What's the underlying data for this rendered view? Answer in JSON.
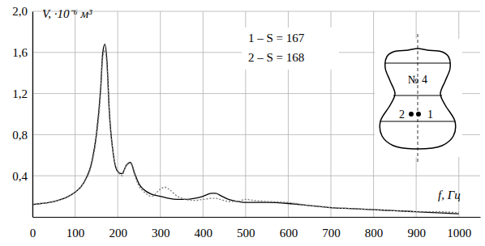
{
  "chart_data": {
    "type": "line",
    "x_label": "f, Гц",
    "y_label": "V, ·10⁻⁶ м³",
    "grid": true,
    "x": [
      0,
      20,
      40,
      60,
      80,
      100,
      120,
      140,
      150,
      160,
      165,
      170,
      175,
      180,
      190,
      200,
      210,
      220,
      230,
      240,
      250,
      260,
      280,
      300,
      310,
      320,
      340,
      360,
      380,
      400,
      420,
      430,
      440,
      460,
      480,
      500,
      520,
      550,
      600,
      650,
      700,
      750,
      800,
      850,
      900,
      950,
      1000
    ],
    "series": [
      {
        "name": "1 – S = 167",
        "color": "#000000",
        "line_style": "solid",
        "values": [
          0.12,
          0.13,
          0.14,
          0.16,
          0.19,
          0.24,
          0.33,
          0.55,
          0.8,
          1.25,
          1.6,
          1.68,
          1.5,
          1.05,
          0.6,
          0.44,
          0.42,
          0.5,
          0.53,
          0.42,
          0.32,
          0.27,
          0.22,
          0.2,
          0.19,
          0.18,
          0.17,
          0.17,
          0.18,
          0.2,
          0.23,
          0.23,
          0.21,
          0.17,
          0.15,
          0.14,
          0.14,
          0.14,
          0.13,
          0.11,
          0.09,
          0.08,
          0.07,
          0.06,
          0.05,
          0.04,
          0.03
        ]
      },
      {
        "name": "2 – S = 168",
        "color": "#808080",
        "line_style": "dotted",
        "values": [
          0.12,
          0.13,
          0.14,
          0.16,
          0.19,
          0.24,
          0.33,
          0.53,
          0.77,
          1.2,
          1.55,
          1.62,
          1.45,
          1.02,
          0.6,
          0.45,
          0.4,
          0.5,
          0.52,
          0.4,
          0.3,
          0.25,
          0.2,
          0.27,
          0.29,
          0.27,
          0.2,
          0.17,
          0.16,
          0.17,
          0.18,
          0.18,
          0.17,
          0.15,
          0.15,
          0.17,
          0.16,
          0.15,
          0.14,
          0.11,
          0.09,
          0.08,
          0.07,
          0.06,
          0.05,
          0.05,
          0.04
        ]
      }
    ],
    "xlim": [
      0,
      1050
    ],
    "xticks": [
      0,
      100,
      200,
      300,
      400,
      500,
      600,
      700,
      800,
      900,
      1000
    ],
    "ylim": [
      0,
      2.0
    ],
    "yticks": [
      {
        "value": 0.4,
        "label": "0,4"
      },
      {
        "value": 0.8,
        "label": "0,8"
      },
      {
        "value": 1.2,
        "label": "1,2"
      },
      {
        "value": 1.6,
        "label": "1,6"
      },
      {
        "value": 2.0,
        "label": "2,0"
      }
    ],
    "annotations": [
      "№ 4",
      "2",
      "1"
    ]
  }
}
